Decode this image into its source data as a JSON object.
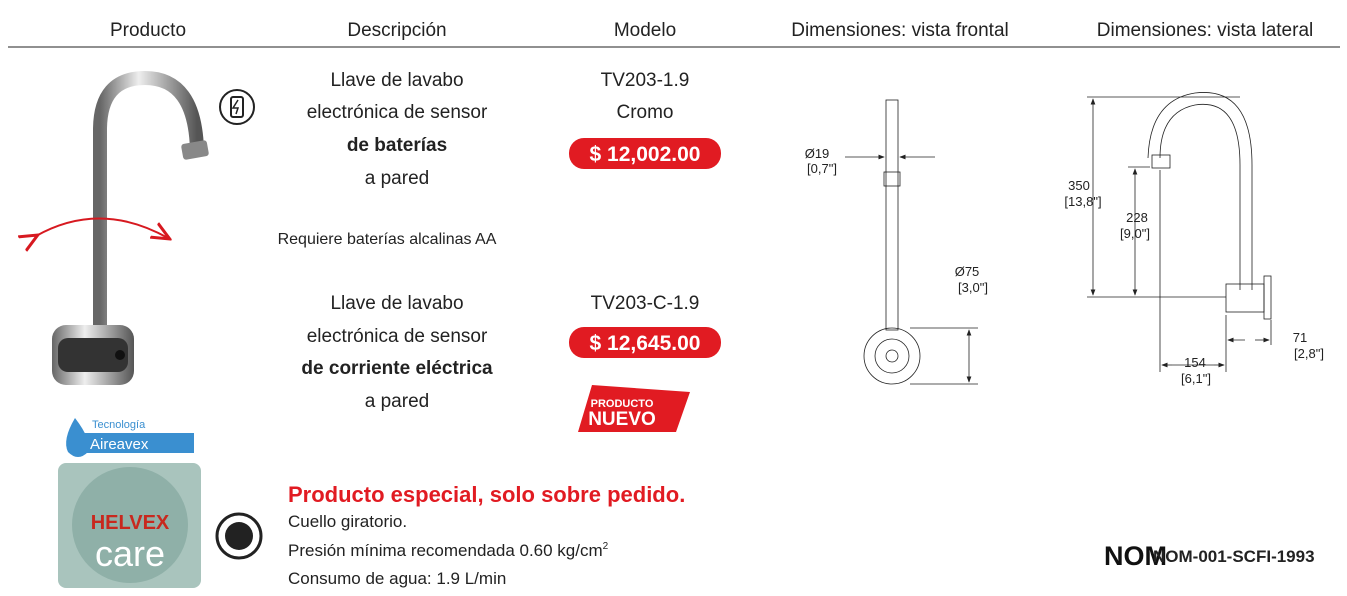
{
  "header": {
    "columns": [
      "Producto",
      "Descripción",
      "Modelo",
      "Dimensiones: vista frontal",
      "Dimensiones: vista lateral"
    ]
  },
  "variants": [
    {
      "description": [
        "Llave de lavabo",
        "electrónica de sensor",
        "de baterías",
        "a pared"
      ],
      "model": "TV203-1.9",
      "finish": "Cromo",
      "price": "$ 12,002.00"
    },
    {
      "description": [
        "Llave de lavabo",
        "electrónica de sensor",
        "de corriente eléctrica",
        "a pared"
      ],
      "model": "TV203-C-1.9",
      "price": "$ 12,645.00",
      "badge": [
        "PRODUCTO",
        "NUEVO"
      ]
    }
  ],
  "note": "Requiere baterías alcalinas AA",
  "logos": {
    "tech": "Tecnología",
    "aireavex": "Aireavex",
    "helvex": "HELVEX",
    "care": "care",
    "nom": "NOM"
  },
  "special": {
    "title": "Producto especial, solo sobre pedido.",
    "lines": [
      "Cuello giratorio.",
      "Presión mínima recomendada 0.60 kg/cm",
      "Consumo de agua: 1.9 L/min"
    ],
    "superscript": "2"
  },
  "front_dims": [
    "Ø19",
    "[0,7\"]",
    "Ø75",
    "[3,0\"]"
  ],
  "side_dims": [
    "350",
    "[13,8\"]",
    "228",
    "[9,0\"]",
    "71",
    "[2,8\"]",
    "154",
    "[6,1\"]"
  ],
  "certification": "NOM-001-SCFI-1993"
}
